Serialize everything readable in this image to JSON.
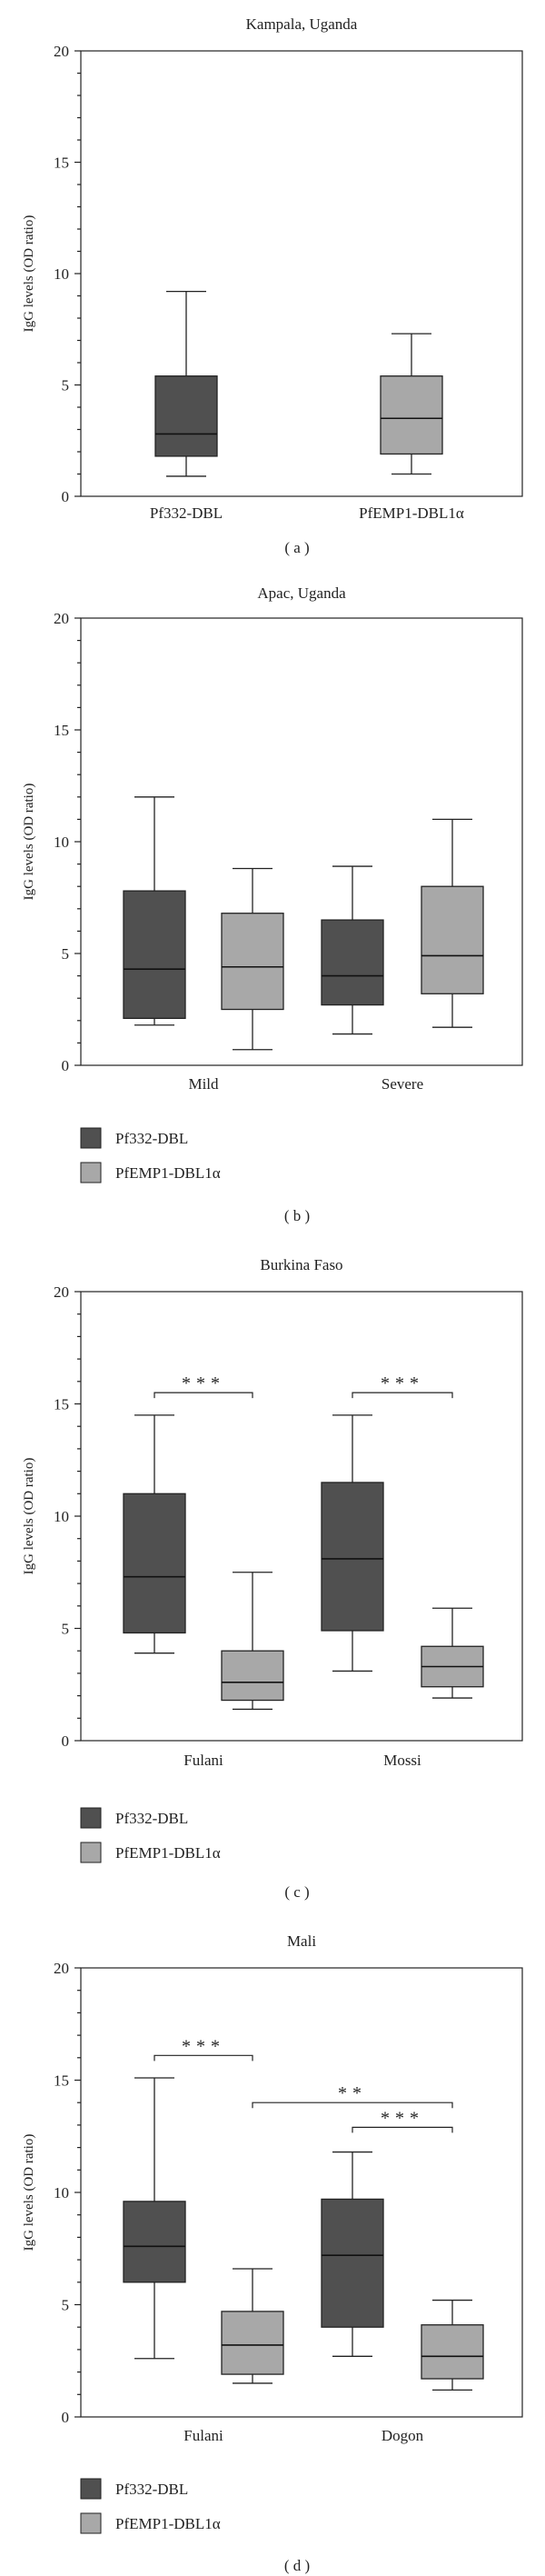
{
  "colors": {
    "pf332": "#505050",
    "pfemp1": "#a8a8a8"
  },
  "legend": {
    "pf332_label": "Pf332-DBL",
    "pfemp1_label": "PfEMP1-DBL1α"
  },
  "chart_data": [
    {
      "id": "a",
      "type": "boxplot",
      "title": "Kampala, Uganda",
      "ylabel": "IgG levels (OD ratio)",
      "ylim": [
        0,
        20
      ],
      "yticks": [
        0,
        5,
        10,
        15,
        20
      ],
      "panel_label": "( a )",
      "legend": false,
      "categories": [],
      "boxes": [
        {
          "series": "pf332",
          "label": "Pf332-DBL",
          "min": 0.9,
          "q1": 1.8,
          "median": 2.8,
          "q3": 5.4,
          "max": 9.2
        },
        {
          "series": "pfemp1",
          "label": "PfEMP1-DBL1α",
          "min": 1.0,
          "q1": 1.9,
          "median": 3.5,
          "q3": 5.4,
          "max": 7.3
        }
      ],
      "significance": []
    },
    {
      "id": "b",
      "type": "boxplot",
      "title": "Apac, Uganda",
      "ylabel": "IgG levels (OD ratio)",
      "ylim": [
        0,
        20
      ],
      "yticks": [
        0,
        5,
        10,
        15,
        20
      ],
      "panel_label": "( b )",
      "legend": true,
      "categories": [
        "Mild",
        "Severe"
      ],
      "boxes": [
        {
          "series": "pf332",
          "category": 0,
          "min": 1.8,
          "q1": 2.1,
          "median": 4.3,
          "q3": 7.8,
          "max": 12.0
        },
        {
          "series": "pfemp1",
          "category": 0,
          "min": 0.7,
          "q1": 2.5,
          "median": 4.4,
          "q3": 6.8,
          "max": 8.8
        },
        {
          "series": "pf332",
          "category": 1,
          "min": 1.4,
          "q1": 2.7,
          "median": 4.0,
          "q3": 6.5,
          "max": 8.9
        },
        {
          "series": "pfemp1",
          "category": 1,
          "min": 1.7,
          "q1": 3.2,
          "median": 4.9,
          "q3": 8.0,
          "max": 11.0
        }
      ],
      "significance": []
    },
    {
      "id": "c",
      "type": "boxplot",
      "title": "Burkina Faso",
      "ylabel": "IgG levels (OD ratio)",
      "ylim": [
        0,
        20
      ],
      "yticks": [
        0,
        5,
        10,
        15,
        20
      ],
      "panel_label": "( c )",
      "legend": true,
      "categories": [
        "Fulani",
        "Mossi"
      ],
      "boxes": [
        {
          "series": "pf332",
          "category": 0,
          "min": 3.9,
          "q1": 4.8,
          "median": 7.3,
          "q3": 11.0,
          "max": 14.5
        },
        {
          "series": "pfemp1",
          "category": 0,
          "min": 1.4,
          "q1": 1.8,
          "median": 2.6,
          "q3": 4.0,
          "max": 7.5
        },
        {
          "series": "pf332",
          "category": 1,
          "min": 3.1,
          "q1": 4.9,
          "median": 8.1,
          "q3": 11.5,
          "max": 14.5
        },
        {
          "series": "pfemp1",
          "category": 1,
          "min": 1.9,
          "q1": 2.4,
          "median": 3.3,
          "q3": 4.2,
          "max": 5.9
        }
      ],
      "significance": [
        {
          "from": 0,
          "to": 1,
          "y": 15.5,
          "stars": "***"
        },
        {
          "from": 2,
          "to": 3,
          "y": 15.5,
          "stars": "***"
        }
      ]
    },
    {
      "id": "d",
      "type": "boxplot",
      "title": "Mali",
      "ylabel": "IgG levels (OD ratio)",
      "ylim": [
        0,
        20
      ],
      "yticks": [
        0,
        5,
        10,
        15,
        20
      ],
      "panel_label": "( d )",
      "legend": true,
      "categories": [
        "Fulani",
        "Dogon"
      ],
      "boxes": [
        {
          "series": "pf332",
          "category": 0,
          "min": 2.6,
          "q1": 6.0,
          "median": 7.6,
          "q3": 9.6,
          "max": 15.1
        },
        {
          "series": "pfemp1",
          "category": 0,
          "min": 1.5,
          "q1": 1.9,
          "median": 3.2,
          "q3": 4.7,
          "max": 6.6
        },
        {
          "series": "pf332",
          "category": 1,
          "min": 2.7,
          "q1": 4.0,
          "median": 7.2,
          "q3": 9.7,
          "max": 11.8
        },
        {
          "series": "pfemp1",
          "category": 1,
          "min": 1.2,
          "q1": 1.7,
          "median": 2.7,
          "q3": 4.1,
          "max": 5.2
        }
      ],
      "significance": [
        {
          "from": 0,
          "to": 1,
          "y": 16.1,
          "stars": "***"
        },
        {
          "from": 1,
          "to": 3,
          "y": 14.0,
          "stars": "**"
        },
        {
          "from": 2,
          "to": 3,
          "y": 12.9,
          "stars": "***"
        }
      ]
    }
  ]
}
